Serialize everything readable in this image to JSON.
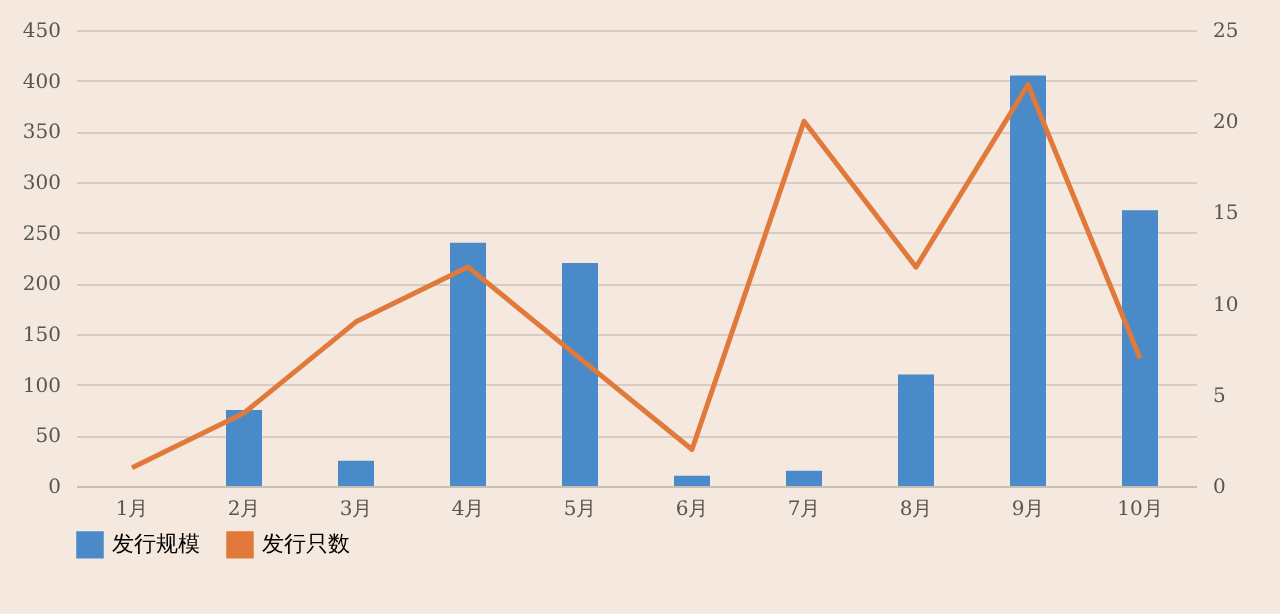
{
  "chart_data": {
    "type": "bar",
    "categories": [
      "1月",
      "2月",
      "3月",
      "4月",
      "5月",
      "6月",
      "7月",
      "8月",
      "9月",
      "10月"
    ],
    "series": [
      {
        "name": "发行规模",
        "color": "#4a8ac9",
        "values": [
          0,
          75,
          25,
          240,
          220,
          10,
          15,
          110,
          405,
          272
        ]
      },
      {
        "name": "发行只数",
        "type": "line",
        "axis": "y2",
        "color": "#e0793a",
        "values": [
          1,
          4,
          9,
          12,
          7,
          2,
          20,
          12,
          22,
          7
        ]
      }
    ],
    "ylim": [
      0,
      450
    ],
    "yticks": [
      0,
      50,
      100,
      150,
      200,
      250,
      300,
      350,
      400,
      450
    ],
    "y2lim": [
      0,
      25
    ],
    "y2ticks": [
      0,
      5,
      10,
      15,
      20,
      25
    ],
    "grid": "y",
    "legend": "bottom",
    "marker": "none"
  }
}
